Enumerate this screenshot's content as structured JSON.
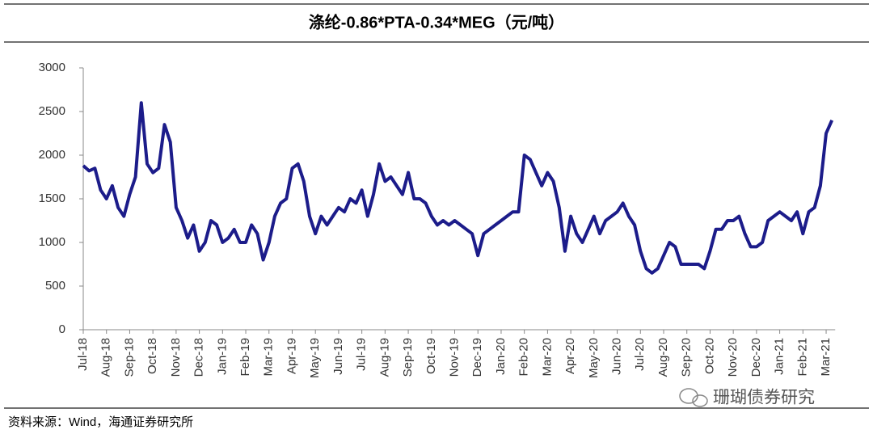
{
  "title": "涤纶-0.86*PTA-0.34*MEG（元/吨）",
  "source": "资料来源：Wind，海通证券研究所",
  "watermark": "珊瑚债券研究",
  "chart_data": {
    "type": "line",
    "categories": [
      "Jul-18",
      null,
      null,
      null,
      "Aug-18",
      null,
      null,
      null,
      "Sep-18",
      null,
      null,
      null,
      "Oct-18",
      null,
      null,
      null,
      "Nov-18",
      null,
      null,
      null,
      "Dec-18",
      null,
      null,
      null,
      "Jan-19",
      null,
      null,
      null,
      "Feb-19",
      null,
      null,
      null,
      "Mar-19",
      null,
      null,
      null,
      "Apr-19",
      null,
      null,
      null,
      "May-19",
      null,
      null,
      null,
      "Jun-19",
      null,
      null,
      null,
      "Jul-19",
      null,
      null,
      null,
      "Aug-19",
      null,
      null,
      null,
      "Sep-19",
      null,
      null,
      null,
      "Oct-19",
      null,
      null,
      null,
      "Nov-19",
      null,
      null,
      null,
      "Dec-19",
      null,
      null,
      null,
      "Jan-20",
      null,
      null,
      null,
      "Feb-20",
      null,
      null,
      null,
      "Mar-20",
      null,
      null,
      null,
      "Apr-20",
      null,
      null,
      null,
      "May-20",
      null,
      null,
      null,
      "Jun-20",
      null,
      null,
      null,
      "Jul-20",
      null,
      null,
      null,
      "Aug-20",
      null,
      null,
      null,
      "Sep-20",
      null,
      null,
      null,
      "Oct-20",
      null,
      null,
      null,
      "Nov-20",
      null,
      null,
      null,
      "Dec-20",
      null,
      null,
      null,
      "Jan-21",
      null,
      null,
      null,
      "Feb-21",
      null,
      null,
      null,
      "Mar-21",
      null
    ],
    "series": [
      {
        "name": "涤纶-0.86*PTA-0.34*MEG",
        "color": "#1c1c8a",
        "values": [
          1880,
          1820,
          1850,
          1600,
          1500,
          1650,
          1400,
          1300,
          1550,
          1750,
          2600,
          1900,
          1800,
          1850,
          2350,
          2150,
          1400,
          1250,
          1050,
          1200,
          900,
          1000,
          1250,
          1200,
          1000,
          1050,
          1150,
          1000,
          1000,
          1200,
          1100,
          800,
          1000,
          1300,
          1450,
          1500,
          1850,
          1900,
          1700,
          1300,
          1100,
          1300,
          1200,
          1300,
          1400,
          1350,
          1500,
          1450,
          1600,
          1300,
          1550,
          1900,
          1700,
          1750,
          1650,
          1550,
          1800,
          1500,
          1500,
          1450,
          1300,
          1200,
          1250,
          1200,
          1250,
          1200,
          1150,
          1100,
          850,
          1100,
          1150,
          1200,
          1250,
          1300,
          1350,
          1350,
          2000,
          1950,
          1800,
          1650,
          1800,
          1700,
          1400,
          900,
          1300,
          1100,
          1000,
          1150,
          1300,
          1100,
          1250,
          1300,
          1350,
          1450,
          1300,
          1200,
          900,
          700,
          650,
          700,
          850,
          1000,
          950,
          750,
          750,
          750,
          750,
          700,
          900,
          1150,
          1150,
          1250,
          1250,
          1300,
          1100,
          950,
          950,
          1000,
          1250,
          1300,
          1350,
          1300,
          1250,
          1350,
          1100,
          1350,
          1400,
          1650,
          2250,
          2400
        ]
      }
    ],
    "ylim": [
      0,
      3000
    ],
    "yticks": [
      0,
      500,
      1000,
      1500,
      2000,
      2500,
      3000
    ],
    "grid": false
  }
}
